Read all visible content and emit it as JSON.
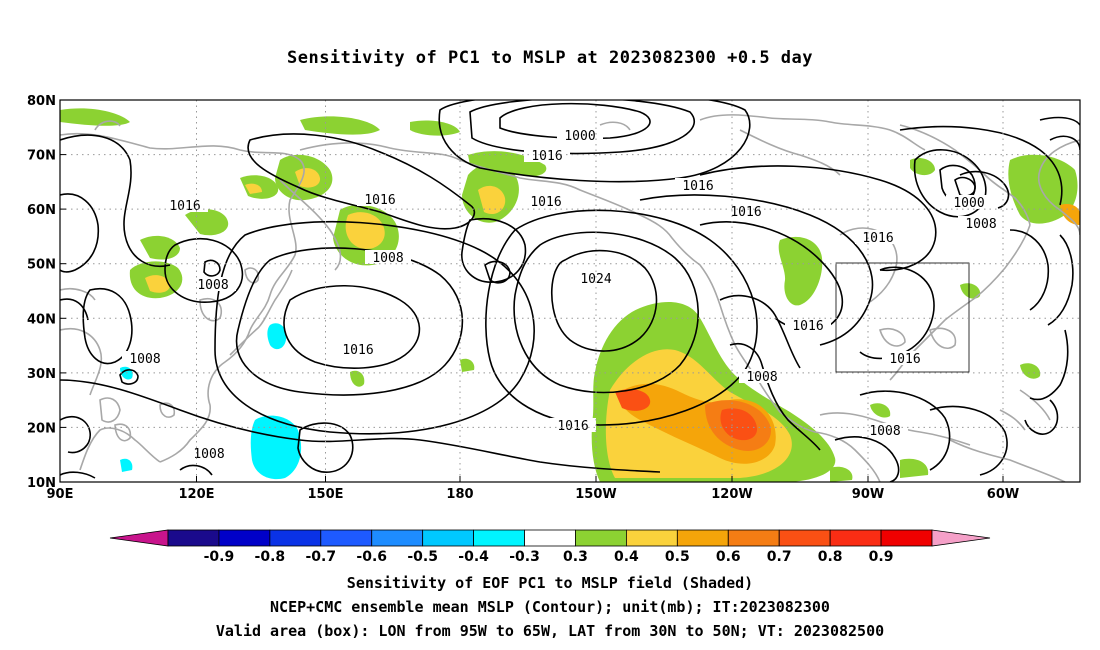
{
  "title": "Sensitivity of PC1 to MSLP at 2023082300 +0.5 day",
  "lat_labels": [
    "80N",
    "70N",
    "60N",
    "50N",
    "40N",
    "30N",
    "20N",
    "10N"
  ],
  "lon_labels": [
    "90E",
    "120E",
    "150E",
    "180",
    "150W",
    "120W",
    "90W",
    "60W"
  ],
  "contour_labels": [
    {
      "text": "1000"
    },
    {
      "text": "1016"
    },
    {
      "text": "1016"
    },
    {
      "text": "1016"
    },
    {
      "text": "1016"
    },
    {
      "text": "1016"
    },
    {
      "text": "1016"
    },
    {
      "text": "1000"
    },
    {
      "text": "1008"
    },
    {
      "text": "1016"
    },
    {
      "text": "1008"
    },
    {
      "text": "1008"
    },
    {
      "text": "1024"
    },
    {
      "text": "1016"
    },
    {
      "text": "1016"
    },
    {
      "text": "1016"
    },
    {
      "text": "1008"
    },
    {
      "text": "1016"
    },
    {
      "text": "1008"
    },
    {
      "text": "1008"
    },
    {
      "text": "1008"
    }
  ],
  "colorbar": {
    "labels": [
      "-0.9",
      "-0.8",
      "-0.7",
      "-0.6",
      "-0.5",
      "-0.4",
      "-0.3",
      "0.3",
      "0.4",
      "0.5",
      "0.6",
      "0.7",
      "0.8",
      "0.9"
    ],
    "colors": [
      "#c8148c",
      "#1a0a8c",
      "#0000c8",
      "#0a32e6",
      "#1e5aff",
      "#1e8cff",
      "#00c8ff",
      "#00f5ff",
      "#ffffff",
      "#8cd232",
      "#fad23c",
      "#f5a50a",
      "#f57d14",
      "#fa5014",
      "#fa2d14",
      "#f00000",
      "#f5a0c8"
    ]
  },
  "captions": [
    "Sensitivity of EOF PC1 to MSLP field (Shaded)",
    "NCEP+CMC ensemble mean MSLP (Contour); unit(mb); IT:2023082300",
    "Valid area (box): LON from 95W to 65W, LAT from 30N to 50N; VT: 2023082500"
  ],
  "valid_box": {
    "lon_min": "95W",
    "lon_max": "65W",
    "lat_min": "30N",
    "lat_max": "50N"
  }
}
